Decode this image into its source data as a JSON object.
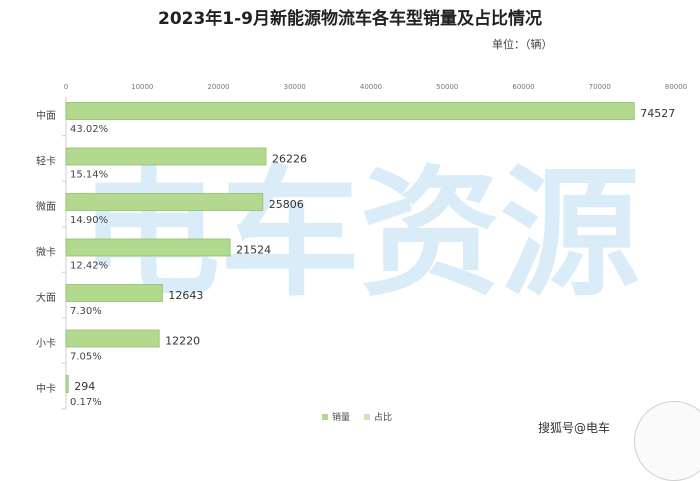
{
  "title": "2023年1-9月新能源物流车各车型销量及占比情况",
  "unit_label": "单位：（辆）",
  "watermark": "电车资源",
  "footer": "搜狐号@电车",
  "colors": {
    "bar_fill": "#b2d98e",
    "bar_edge": "#8fbf6b",
    "share_legend": "#cfe6b8",
    "watermark": "#d9ecf7"
  },
  "chart_data": {
    "type": "bar",
    "orientation": "horizontal",
    "categories": [
      "中面",
      "轻卡",
      "微面",
      "微卡",
      "大面",
      "小卡",
      "中卡"
    ],
    "series": [
      {
        "name": "销量",
        "values": [
          74527,
          26226,
          25806,
          21524,
          12643,
          12220,
          294
        ]
      },
      {
        "name": "占比",
        "values": [
          "43.02%",
          "15.14%",
          "14.90%",
          "12.42%",
          "7.30%",
          "7.05%",
          "0.17%"
        ]
      }
    ],
    "x_ticks": [
      0,
      10000,
      20000,
      30000,
      40000,
      50000,
      60000,
      70000,
      80000
    ],
    "xlim": [
      0,
      80000
    ],
    "legend": [
      "销量",
      "占比"
    ],
    "legend_position": "bottom-right",
    "grid": false
  }
}
